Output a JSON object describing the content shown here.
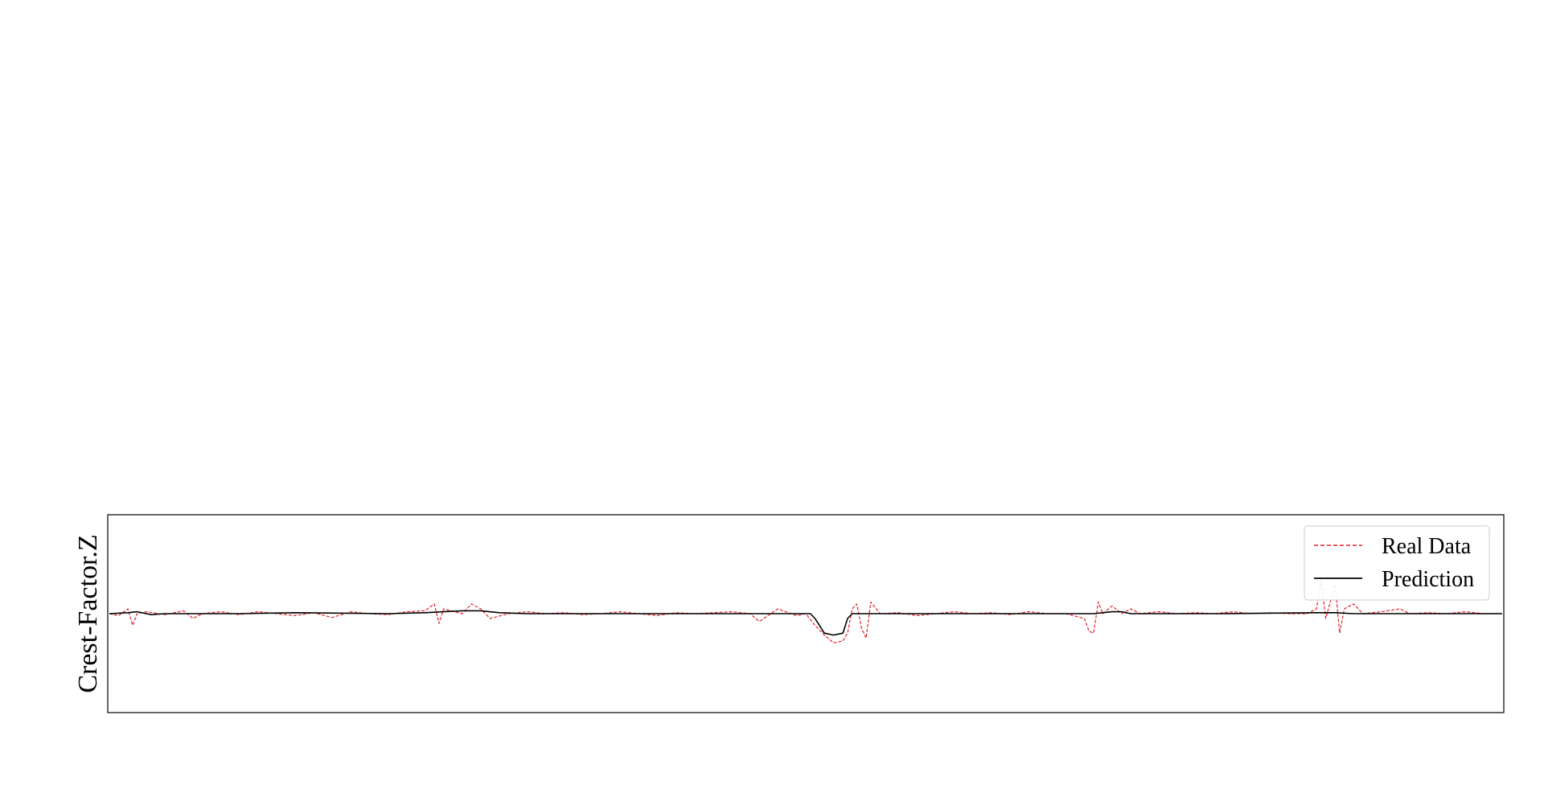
{
  "chart_data": {
    "type": "line",
    "title": "",
    "xlabel": "",
    "ylabel": "Crest-Factor.Z",
    "x_range": [
      0,
      1500
    ],
    "ylim": [
      -1.0,
      1.0
    ],
    "grid": false,
    "legend_position": "top-right",
    "colors": {
      "real": "#e0252b",
      "prediction": "#000000"
    },
    "series": [
      {
        "name": "Real Data",
        "style": "dashed",
        "color": "#e0252b",
        "points": [
          [
            0,
            0.0
          ],
          [
            10,
            -0.02
          ],
          [
            20,
            0.05
          ],
          [
            25,
            -0.12
          ],
          [
            30,
            0.0
          ],
          [
            40,
            0.02
          ],
          [
            60,
            -0.01
          ],
          [
            80,
            0.03
          ],
          [
            90,
            -0.05
          ],
          [
            100,
            0.0
          ],
          [
            120,
            0.02
          ],
          [
            140,
            -0.01
          ],
          [
            160,
            0.02
          ],
          [
            180,
            0.0
          ],
          [
            200,
            -0.02
          ],
          [
            220,
            0.01
          ],
          [
            240,
            -0.04
          ],
          [
            260,
            0.02
          ],
          [
            280,
            0.0
          ],
          [
            300,
            -0.01
          ],
          [
            320,
            0.02
          ],
          [
            340,
            0.03
          ],
          [
            350,
            0.1
          ],
          [
            355,
            -0.1
          ],
          [
            360,
            0.05
          ],
          [
            380,
            0.0
          ],
          [
            390,
            0.1
          ],
          [
            400,
            0.05
          ],
          [
            410,
            -0.05
          ],
          [
            430,
            0.0
          ],
          [
            450,
            0.02
          ],
          [
            470,
            0.0
          ],
          [
            490,
            0.01
          ],
          [
            510,
            -0.01
          ],
          [
            530,
            0.0
          ],
          [
            550,
            0.02
          ],
          [
            570,
            0.0
          ],
          [
            590,
            -0.02
          ],
          [
            610,
            0.01
          ],
          [
            630,
            0.0
          ],
          [
            650,
            0.01
          ],
          [
            670,
            0.02
          ],
          [
            690,
            0.0
          ],
          [
            700,
            -0.08
          ],
          [
            720,
            0.05
          ],
          [
            740,
            -0.02
          ],
          [
            750,
            0.0
          ],
          [
            760,
            -0.12
          ],
          [
            770,
            -0.22
          ],
          [
            780,
            -0.3
          ],
          [
            790,
            -0.28
          ],
          [
            795,
            -0.2
          ],
          [
            800,
            0.05
          ],
          [
            805,
            0.1
          ],
          [
            810,
            -0.15
          ],
          [
            815,
            -0.25
          ],
          [
            820,
            0.12
          ],
          [
            830,
            0.0
          ],
          [
            850,
            0.01
          ],
          [
            870,
            -0.02
          ],
          [
            890,
            0.0
          ],
          [
            910,
            0.02
          ],
          [
            930,
            0.0
          ],
          [
            950,
            0.01
          ],
          [
            970,
            -0.01
          ],
          [
            990,
            0.02
          ],
          [
            1010,
            0.0
          ],
          [
            1030,
            0.0
          ],
          [
            1050,
            -0.05
          ],
          [
            1055,
            -0.18
          ],
          [
            1060,
            -0.2
          ],
          [
            1065,
            0.12
          ],
          [
            1070,
            0.0
          ],
          [
            1080,
            0.08
          ],
          [
            1090,
            0.0
          ],
          [
            1100,
            0.05
          ],
          [
            1110,
            0.0
          ],
          [
            1130,
            0.02
          ],
          [
            1150,
            0.0
          ],
          [
            1170,
            0.01
          ],
          [
            1190,
            0.0
          ],
          [
            1210,
            0.02
          ],
          [
            1230,
            0.0
          ],
          [
            1250,
            0.01
          ],
          [
            1270,
            0.0
          ],
          [
            1290,
            0.0
          ],
          [
            1300,
            0.05
          ],
          [
            1305,
            0.35
          ],
          [
            1310,
            -0.05
          ],
          [
            1320,
            0.3
          ],
          [
            1325,
            -0.2
          ],
          [
            1330,
            0.05
          ],
          [
            1340,
            0.1
          ],
          [
            1350,
            0.0
          ],
          [
            1370,
            0.02
          ],
          [
            1390,
            0.05
          ],
          [
            1400,
            0.0
          ],
          [
            1420,
            0.01
          ],
          [
            1440,
            0.0
          ],
          [
            1460,
            0.02
          ],
          [
            1480,
            0.0
          ],
          [
            1500,
            0.0
          ]
        ]
      },
      {
        "name": "Prediction",
        "style": "solid",
        "color": "#000000",
        "points": [
          [
            0,
            0.0
          ],
          [
            20,
            0.01
          ],
          [
            30,
            0.02
          ],
          [
            45,
            -0.01
          ],
          [
            60,
            0.0
          ],
          [
            100,
            0.0
          ],
          [
            140,
            0.0
          ],
          [
            200,
            0.01
          ],
          [
            300,
            0.0
          ],
          [
            340,
            0.01
          ],
          [
            360,
            0.02
          ],
          [
            380,
            0.03
          ],
          [
            400,
            0.03
          ],
          [
            420,
            0.01
          ],
          [
            450,
            0.0
          ],
          [
            500,
            0.0
          ],
          [
            600,
            0.0
          ],
          [
            700,
            0.0
          ],
          [
            740,
            0.0
          ],
          [
            755,
            0.0
          ],
          [
            760,
            -0.05
          ],
          [
            770,
            -0.2
          ],
          [
            780,
            -0.22
          ],
          [
            790,
            -0.2
          ],
          [
            795,
            -0.05
          ],
          [
            800,
            0.0
          ],
          [
            850,
            0.0
          ],
          [
            900,
            0.0
          ],
          [
            1000,
            0.0
          ],
          [
            1060,
            0.0
          ],
          [
            1080,
            0.02
          ],
          [
            1090,
            0.02
          ],
          [
            1100,
            0.0
          ],
          [
            1200,
            0.0
          ],
          [
            1300,
            0.01
          ],
          [
            1320,
            0.01
          ],
          [
            1340,
            0.0
          ],
          [
            1400,
            0.0
          ],
          [
            1500,
            0.0
          ]
        ]
      }
    ]
  }
}
